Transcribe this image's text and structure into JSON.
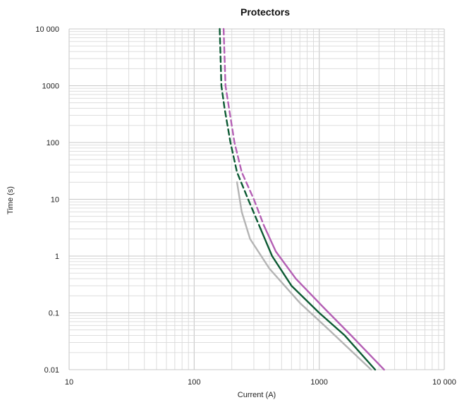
{
  "chart_data": {
    "type": "line",
    "title": "Protectors",
    "xlabel": "Current (A)",
    "ylabel": "Time (s)",
    "xscale": "log",
    "yscale": "log",
    "xlim": [
      10,
      10000
    ],
    "ylim": [
      0.01,
      10000
    ],
    "grid": true,
    "legend": "none",
    "x_ticks": [
      {
        "value": 10,
        "label": "10"
      },
      {
        "value": 100,
        "label": "100"
      },
      {
        "value": 1000,
        "label": "1000"
      },
      {
        "value": 10000,
        "label": "10 000"
      }
    ],
    "y_ticks": [
      {
        "value": 0.01,
        "label": "0.01"
      },
      {
        "value": 0.1,
        "label": "0.1"
      },
      {
        "value": 1,
        "label": "1"
      },
      {
        "value": 10,
        "label": "10"
      },
      {
        "value": 100,
        "label": "100"
      },
      {
        "value": 1000,
        "label": "1000"
      },
      {
        "value": 10000,
        "label": "10 000"
      }
    ],
    "series": [
      {
        "color": "#b4b4b4",
        "style": "solid",
        "points": [
          [
            220,
            20
          ],
          [
            240,
            6
          ],
          [
            280,
            2
          ],
          [
            400,
            0.6
          ],
          [
            700,
            0.15
          ],
          [
            1200,
            0.05
          ],
          [
            2600,
            0.01
          ]
        ]
      },
      {
        "color": "#0c5a33",
        "style": "dashed",
        "points": [
          [
            160,
            10000
          ],
          [
            165,
            1000
          ],
          [
            175,
            400
          ],
          [
            195,
            100
          ],
          [
            220,
            30
          ],
          [
            270,
            10
          ],
          [
            340,
            3
          ]
        ]
      },
      {
        "color": "#0c5a33",
        "style": "solid",
        "points": [
          [
            340,
            3
          ],
          [
            420,
            1
          ],
          [
            600,
            0.3
          ],
          [
            1000,
            0.1
          ],
          [
            1600,
            0.04
          ],
          [
            2800,
            0.01
          ]
        ]
      },
      {
        "color": "#b45fb4",
        "style": "dashed",
        "points": [
          [
            172,
            10000
          ],
          [
            178,
            1000
          ],
          [
            190,
            400
          ],
          [
            210,
            100
          ],
          [
            240,
            30
          ],
          [
            300,
            10
          ],
          [
            360,
            3.5
          ]
        ]
      },
      {
        "color": "#b45fb4",
        "style": "solid",
        "points": [
          [
            360,
            3.5
          ],
          [
            450,
            1.2
          ],
          [
            650,
            0.4
          ],
          [
            1100,
            0.12
          ],
          [
            1800,
            0.04
          ],
          [
            3300,
            0.01
          ]
        ]
      }
    ]
  }
}
